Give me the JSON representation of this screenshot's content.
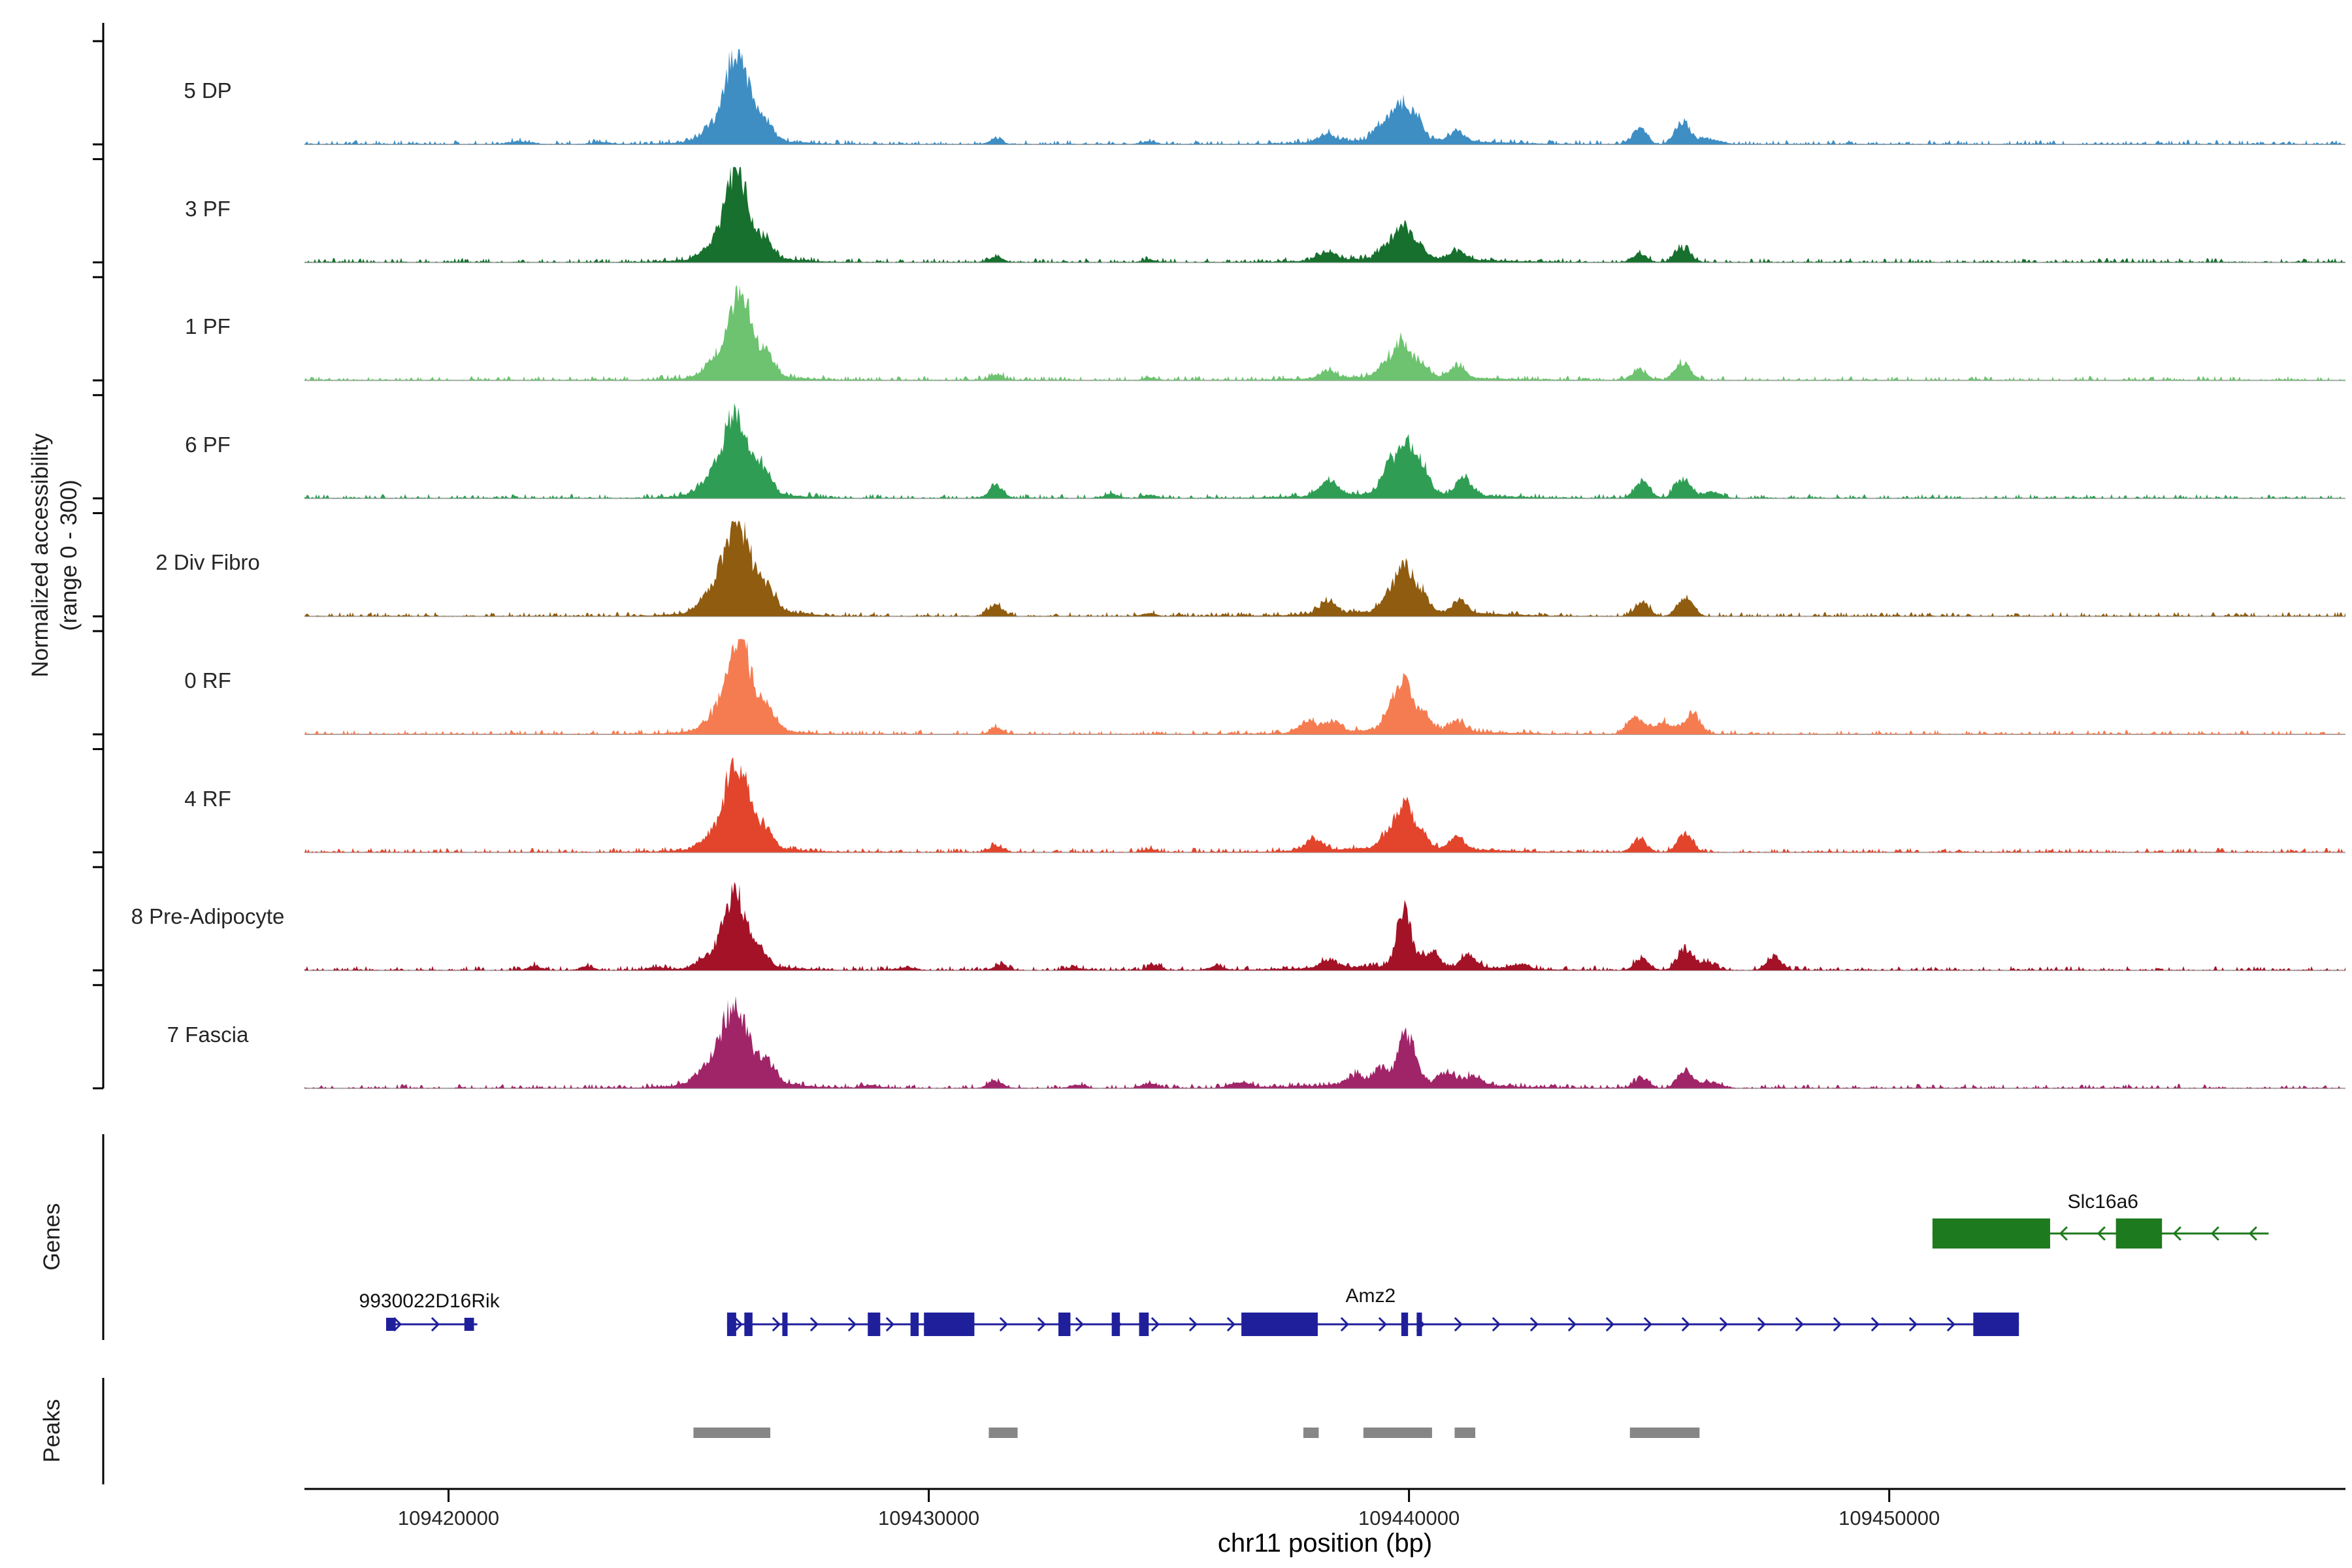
{
  "figure": {
    "ylabel_line1": "Normalized accessibility",
    "ylabel_line2": "(range 0 - 300)",
    "genes_section_label": "Genes",
    "peaks_section_label": "Peaks",
    "xaxis_title": "chr11 position (bp)"
  },
  "chart_data": {
    "type": "area",
    "title": "",
    "xlabel": "chr11 position (bp)",
    "ylabel": "Normalized accessibility (range 0 - 300)",
    "x_range_bp": [
      109417000,
      109459500
    ],
    "y_range_per_track": [
      0,
      300
    ],
    "x_ticks": [
      {
        "bp": 109420000,
        "label": "109420000"
      },
      {
        "bp": 109430000,
        "label": "109430000"
      },
      {
        "bp": 109440000,
        "label": "109440000"
      },
      {
        "bp": 109450000,
        "label": "109450000"
      }
    ],
    "tracks": [
      {
        "label": "5 DP",
        "color": "#3E8EC4",
        "peaks": [
          [
            109426000,
            1.0,
            250
          ],
          [
            109426600,
            0.2,
            160
          ],
          [
            109425400,
            0.1,
            180
          ],
          [
            109426100,
            0.06,
            900
          ],
          [
            109421500,
            0.03,
            250
          ],
          [
            109423200,
            0.025,
            200
          ],
          [
            109431400,
            0.06,
            140
          ],
          [
            109434600,
            0.035,
            140
          ],
          [
            109438300,
            0.09,
            170
          ],
          [
            109439400,
            0.16,
            150
          ],
          [
            109439800,
            0.42,
            160
          ],
          [
            109440150,
            0.28,
            140
          ],
          [
            109439900,
            0.05,
            1500
          ],
          [
            109441000,
            0.11,
            150
          ],
          [
            109444800,
            0.17,
            150
          ],
          [
            109445700,
            0.26,
            160
          ],
          [
            109446300,
            0.06,
            200
          ]
        ]
      },
      {
        "label": "3 PF",
        "color": "#17702E",
        "peaks": [
          [
            109426000,
            0.97,
            250
          ],
          [
            109426600,
            0.18,
            160
          ],
          [
            109425400,
            0.1,
            180
          ],
          [
            109426100,
            0.06,
            900
          ],
          [
            109431400,
            0.07,
            140
          ],
          [
            109434600,
            0.03,
            140
          ],
          [
            109438300,
            0.1,
            170
          ],
          [
            109439500,
            0.12,
            150
          ],
          [
            109439850,
            0.38,
            160
          ],
          [
            109440200,
            0.16,
            140
          ],
          [
            109439900,
            0.045,
            1500
          ],
          [
            109441000,
            0.1,
            150
          ],
          [
            109444800,
            0.1,
            150
          ],
          [
            109445700,
            0.16,
            160
          ]
        ]
      },
      {
        "label": "1 PF",
        "color": "#6DC36F",
        "peaks": [
          [
            109426050,
            0.95,
            260
          ],
          [
            109426650,
            0.2,
            160
          ],
          [
            109425450,
            0.1,
            180
          ],
          [
            109426100,
            0.06,
            900
          ],
          [
            109431400,
            0.07,
            140
          ],
          [
            109434600,
            0.03,
            140
          ],
          [
            109438300,
            0.08,
            170
          ],
          [
            109439500,
            0.14,
            150
          ],
          [
            109439850,
            0.4,
            160
          ],
          [
            109440250,
            0.16,
            140
          ],
          [
            109439900,
            0.045,
            1500
          ],
          [
            109441000,
            0.14,
            150
          ],
          [
            109444800,
            0.12,
            150
          ],
          [
            109445700,
            0.2,
            160
          ]
        ]
      },
      {
        "label": "6 PF",
        "color": "#2F9E54",
        "peaks": [
          [
            109425950,
            0.88,
            260
          ],
          [
            109426550,
            0.26,
            170
          ],
          [
            109425350,
            0.12,
            180
          ],
          [
            109426100,
            0.07,
            900
          ],
          [
            109431400,
            0.14,
            150
          ],
          [
            109433800,
            0.05,
            150
          ],
          [
            109434600,
            0.04,
            140
          ],
          [
            109438300,
            0.18,
            170
          ],
          [
            109439600,
            0.32,
            160
          ],
          [
            109439950,
            0.48,
            160
          ],
          [
            109440250,
            0.3,
            150
          ],
          [
            109439900,
            0.06,
            1500
          ],
          [
            109441150,
            0.19,
            150
          ],
          [
            109444850,
            0.2,
            150
          ],
          [
            109445700,
            0.22,
            160
          ],
          [
            109446300,
            0.07,
            200
          ]
        ]
      },
      {
        "label": "2 Div Fibro",
        "color": "#8F5C10",
        "peaks": [
          [
            109426000,
            1.0,
            290
          ],
          [
            109426650,
            0.22,
            170
          ],
          [
            109425350,
            0.12,
            190
          ],
          [
            109426100,
            0.08,
            900
          ],
          [
            109431400,
            0.13,
            150
          ],
          [
            109434600,
            0.04,
            140
          ],
          [
            109438300,
            0.13,
            170
          ],
          [
            109439550,
            0.16,
            150
          ],
          [
            109439900,
            0.5,
            170
          ],
          [
            109440250,
            0.2,
            150
          ],
          [
            109439900,
            0.055,
            1500
          ],
          [
            109441050,
            0.14,
            150
          ],
          [
            109444850,
            0.16,
            150
          ],
          [
            109445750,
            0.22,
            160
          ]
        ]
      },
      {
        "label": "0 RF",
        "color": "#F57C51",
        "peaks": [
          [
            109426050,
            1.0,
            260
          ],
          [
            109426650,
            0.2,
            160
          ],
          [
            109425450,
            0.1,
            180
          ],
          [
            109426100,
            0.06,
            900
          ],
          [
            109431400,
            0.07,
            140
          ],
          [
            109437900,
            0.14,
            170
          ],
          [
            109438400,
            0.12,
            160
          ],
          [
            109439600,
            0.2,
            150
          ],
          [
            109439900,
            0.55,
            160
          ],
          [
            109440300,
            0.18,
            150
          ],
          [
            109439900,
            0.05,
            1500
          ],
          [
            109441000,
            0.12,
            150
          ],
          [
            109444700,
            0.2,
            160
          ],
          [
            109445300,
            0.14,
            200
          ],
          [
            109445900,
            0.25,
            160
          ]
        ]
      },
      {
        "label": "4 RF",
        "color": "#E2452C",
        "peaks": [
          [
            109426000,
            0.97,
            255
          ],
          [
            109426600,
            0.2,
            160
          ],
          [
            109425400,
            0.1,
            180
          ],
          [
            109426100,
            0.06,
            900
          ],
          [
            109431400,
            0.08,
            140
          ],
          [
            109434600,
            0.035,
            140
          ],
          [
            109438000,
            0.12,
            170
          ],
          [
            109439550,
            0.16,
            150
          ],
          [
            109439900,
            0.5,
            160
          ],
          [
            109440250,
            0.18,
            145
          ],
          [
            109439900,
            0.05,
            1500
          ],
          [
            109441000,
            0.13,
            150
          ],
          [
            109444800,
            0.14,
            150
          ],
          [
            109445750,
            0.2,
            160
          ]
        ]
      },
      {
        "label": "8 Pre-Adipocyte",
        "color": "#A31226",
        "peaks": [
          [
            109425950,
            0.82,
            240
          ],
          [
            109426500,
            0.16,
            160
          ],
          [
            109425350,
            0.1,
            180
          ],
          [
            109426100,
            0.05,
            900
          ],
          [
            109421800,
            0.05,
            140
          ],
          [
            109422900,
            0.04,
            140
          ],
          [
            109424300,
            0.03,
            150
          ],
          [
            109429500,
            0.03,
            200
          ],
          [
            109431500,
            0.06,
            140
          ],
          [
            109433000,
            0.04,
            140
          ],
          [
            109434700,
            0.06,
            140
          ],
          [
            109436000,
            0.04,
            160
          ],
          [
            109438300,
            0.08,
            170
          ],
          [
            109439900,
            0.62,
            150
          ],
          [
            109440450,
            0.17,
            150
          ],
          [
            109439900,
            0.05,
            1600
          ],
          [
            109441250,
            0.14,
            150
          ],
          [
            109442300,
            0.06,
            170
          ],
          [
            109444850,
            0.14,
            150
          ],
          [
            109445750,
            0.24,
            160
          ],
          [
            109446200,
            0.08,
            180
          ],
          [
            109447600,
            0.16,
            150
          ]
        ]
      },
      {
        "label": "7 Fascia",
        "color": "#A02568",
        "peaks": [
          [
            109425950,
            0.85,
            300
          ],
          [
            109426650,
            0.2,
            180
          ],
          [
            109425300,
            0.12,
            200
          ],
          [
            109426100,
            0.07,
            1000
          ],
          [
            109428800,
            0.03,
            200
          ],
          [
            109431400,
            0.08,
            150
          ],
          [
            109433100,
            0.04,
            150
          ],
          [
            109434600,
            0.06,
            150
          ],
          [
            109436500,
            0.06,
            200
          ],
          [
            109438900,
            0.1,
            170
          ],
          [
            109439400,
            0.18,
            150
          ],
          [
            109439950,
            0.58,
            170
          ],
          [
            109440800,
            0.13,
            170
          ],
          [
            109439900,
            0.06,
            1600
          ],
          [
            109441350,
            0.1,
            160
          ],
          [
            109444850,
            0.12,
            150
          ],
          [
            109445750,
            0.2,
            160
          ],
          [
            109446300,
            0.07,
            200
          ]
        ]
      }
    ],
    "genes": [
      {
        "name": "9930022D16Rik",
        "strand": "+",
        "color": "#1F1F9C",
        "row": "lower",
        "start": 109418700,
        "end": 109420600,
        "label_bp": 109419600,
        "exon_h": 20,
        "exons": [
          [
            109418700,
            109418900
          ],
          [
            109420330,
            109420530
          ]
        ]
      },
      {
        "name": "Amz2",
        "strand": "+",
        "color": "#1F1F9C",
        "row": "lower",
        "start": 109425800,
        "end": 109452700,
        "label_bp": 109439200,
        "exon_h": 36,
        "exons": [
          [
            109425800,
            109425990
          ],
          [
            109426160,
            109426330
          ],
          [
            109426950,
            109427060
          ],
          [
            109428730,
            109428990
          ],
          [
            109429620,
            109429790
          ],
          [
            109429900,
            109430950
          ],
          [
            109432700,
            109432950
          ],
          [
            109433810,
            109433980
          ],
          [
            109434380,
            109434580
          ],
          [
            109436510,
            109438100
          ],
          [
            109439840,
            109439980
          ],
          [
            109440160,
            109440270
          ],
          [
            109451750,
            109452700
          ]
        ]
      },
      {
        "name": "Slc16a6",
        "strand": "-",
        "color": "#1E7A1E",
        "row": "upper",
        "start": 109450900,
        "end": 109457900,
        "label_bp": 109454450,
        "exon_h": 46,
        "exons": [
          [
            109450900,
            109453350
          ],
          [
            109454720,
            109455680
          ]
        ]
      }
    ],
    "peaks_color": "#868686",
    "peak_regions": [
      [
        109425100,
        109426700
      ],
      [
        109431250,
        109431850
      ],
      [
        109437800,
        109438120
      ],
      [
        109439050,
        109440480
      ],
      [
        109440950,
        109441380
      ],
      [
        109444600,
        109446050
      ]
    ]
  }
}
